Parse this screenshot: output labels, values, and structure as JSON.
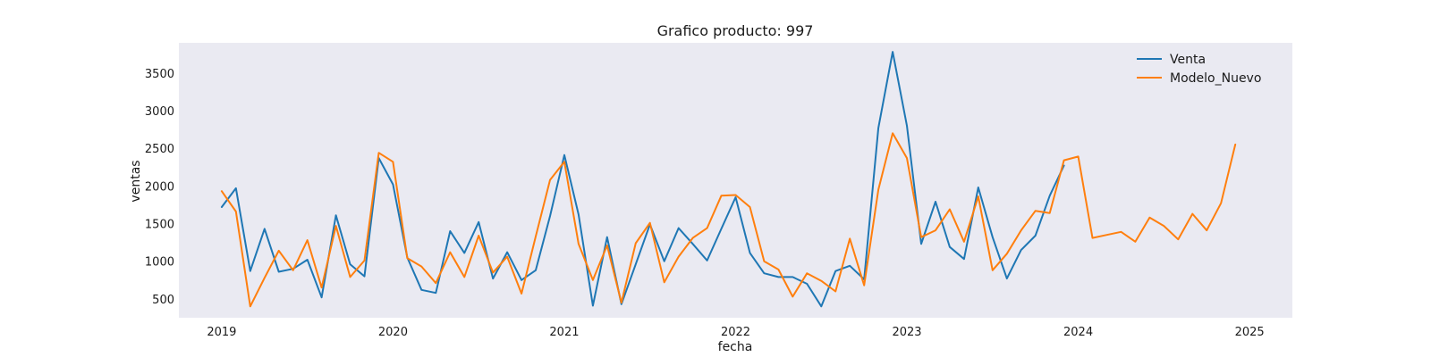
{
  "chart_data": {
    "type": "line",
    "title": "Grafico producto: 997",
    "xlabel": "fecha",
    "ylabel": "ventas",
    "x_ticks": [
      "2019",
      "2020",
      "2021",
      "2022",
      "2023",
      "2024",
      "2025"
    ],
    "y_ticks": [
      500,
      1000,
      1500,
      2000,
      2500,
      3000,
      3500
    ],
    "ylim": [
      250,
      3900
    ],
    "xlim": [
      "2018-10",
      "2025-04"
    ],
    "grid": false,
    "legend": "top-right",
    "colors": {
      "Venta": "#1f77b4",
      "Modelo_Nuevo": "#ff7f0e",
      "plot_bg": "#eaeaf2"
    },
    "series": [
      {
        "name": "Venta",
        "x": [
          "2019-01",
          "2019-02",
          "2019-03",
          "2019-04",
          "2019-05",
          "2019-06",
          "2019-07",
          "2019-08",
          "2019-09",
          "2019-10",
          "2019-11",
          "2019-12",
          "2020-01",
          "2020-02",
          "2020-03",
          "2020-04",
          "2020-05",
          "2020-06",
          "2020-07",
          "2020-08",
          "2020-09",
          "2020-10",
          "2020-11",
          "2020-12",
          "2021-01",
          "2021-02",
          "2021-03",
          "2021-04",
          "2021-05",
          "2021-06",
          "2021-07",
          "2021-08",
          "2021-09",
          "2021-10",
          "2021-11",
          "2021-12",
          "2022-01",
          "2022-02",
          "2022-03",
          "2022-04",
          "2022-05",
          "2022-06",
          "2022-07",
          "2022-08",
          "2022-09",
          "2022-10",
          "2022-11",
          "2022-12",
          "2023-01",
          "2023-02",
          "2023-03",
          "2023-04",
          "2023-05",
          "2023-06",
          "2023-07",
          "2023-08",
          "2023-09",
          "2023-10",
          "2023-11",
          "2023-12"
        ],
        "values": [
          1720,
          1970,
          870,
          1430,
          860,
          900,
          1020,
          520,
          1610,
          960,
          800,
          2370,
          2020,
          1050,
          620,
          580,
          1400,
          1110,
          1520,
          770,
          1120,
          750,
          880,
          1600,
          2410,
          1620,
          410,
          1320,
          430,
          960,
          1490,
          1000,
          1440,
          1230,
          1010,
          1430,
          1850,
          1110,
          840,
          790,
          790,
          700,
          400,
          870,
          940,
          760,
          2770,
          3780,
          2800,
          1230,
          1790,
          1190,
          1030,
          1980,
          1320,
          770,
          1150,
          1340,
          1870,
          2270
        ]
      },
      {
        "name": "Modelo_Nuevo",
        "x": [
          "2019-01",
          "2019-02",
          "2019-03",
          "2019-04",
          "2019-05",
          "2019-06",
          "2019-07",
          "2019-08",
          "2019-09",
          "2019-10",
          "2019-11",
          "2019-12",
          "2020-01",
          "2020-02",
          "2020-03",
          "2020-04",
          "2020-05",
          "2020-06",
          "2020-07",
          "2020-08",
          "2020-09",
          "2020-10",
          "2020-11",
          "2020-12",
          "2021-01",
          "2021-02",
          "2021-03",
          "2021-04",
          "2021-05",
          "2021-06",
          "2021-07",
          "2021-08",
          "2021-09",
          "2021-10",
          "2021-11",
          "2021-12",
          "2022-01",
          "2022-02",
          "2022-03",
          "2022-04",
          "2022-05",
          "2022-06",
          "2022-07",
          "2022-08",
          "2022-09",
          "2022-10",
          "2022-11",
          "2022-12",
          "2023-01",
          "2023-02",
          "2023-03",
          "2023-04",
          "2023-05",
          "2023-06",
          "2023-07",
          "2023-08",
          "2023-09",
          "2023-10",
          "2023-11",
          "2023-12",
          "2024-01",
          "2024-02",
          "2024-03",
          "2024-04",
          "2024-05",
          "2024-06",
          "2024-07",
          "2024-08",
          "2024-09",
          "2024-10",
          "2024-11",
          "2024-12"
        ],
        "values": [
          1930,
          1660,
          400,
          780,
          1140,
          880,
          1280,
          650,
          1470,
          790,
          1010,
          2440,
          2320,
          1040,
          930,
          710,
          1120,
          790,
          1340,
          850,
          1060,
          570,
          1330,
          2080,
          2320,
          1230,
          750,
          1210,
          450,
          1240,
          1510,
          720,
          1060,
          1310,
          1440,
          1870,
          1880,
          1720,
          1000,
          890,
          530,
          840,
          740,
          600,
          1300,
          680,
          1950,
          2700,
          2370,
          1320,
          1410,
          1690,
          1260,
          1860,
          880,
          1100,
          1410,
          1670,
          1640,
          2340,
          2390,
          1310,
          1350,
          1390,
          1260,
          1580,
          1470,
          1290,
          1630,
          1410,
          1770,
          2550
        ]
      }
    ]
  }
}
